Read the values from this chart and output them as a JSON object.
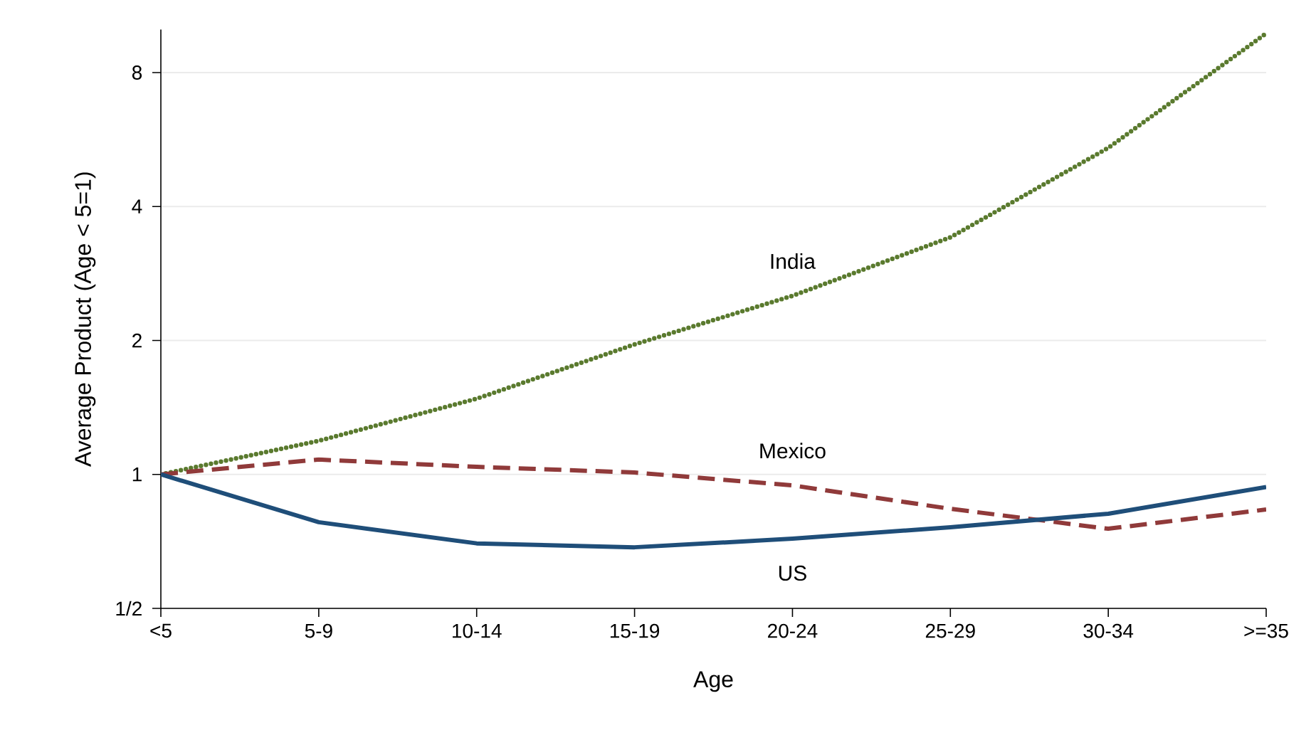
{
  "chart_data": {
    "type": "line",
    "xlabel": "Age",
    "ylabel": "Average Product (Age < 5=1)",
    "log": "y",
    "grid": "y",
    "marker": "none",
    "categories": [
      "<5",
      "5-9",
      "10-14",
      "15-19",
      "20-24",
      "25-29",
      "30-34",
      ">=35"
    ],
    "ylim": [
      0.5,
      10
    ],
    "yticks": [
      {
        "value": 0.5,
        "label": "1/2"
      },
      1,
      2,
      4,
      8
    ],
    "series": [
      {
        "name": "India",
        "color": "#5a7a2e",
        "line_style": "dotted",
        "values": [
          1,
          1.19,
          1.48,
          1.96,
          2.52,
          3.41,
          5.42,
          9.8
        ]
      },
      {
        "name": "Mexico",
        "color": "#903a3a",
        "line_style": "dashed",
        "values": [
          1,
          1.08,
          1.04,
          1.01,
          0.945,
          0.837,
          0.755,
          0.834
        ]
      },
      {
        "name": "US",
        "color": "#1f4e79",
        "line_style": "solid",
        "values": [
          1,
          0.781,
          0.7,
          0.686,
          0.717,
          0.761,
          0.816,
          0.937
        ]
      }
    ]
  }
}
